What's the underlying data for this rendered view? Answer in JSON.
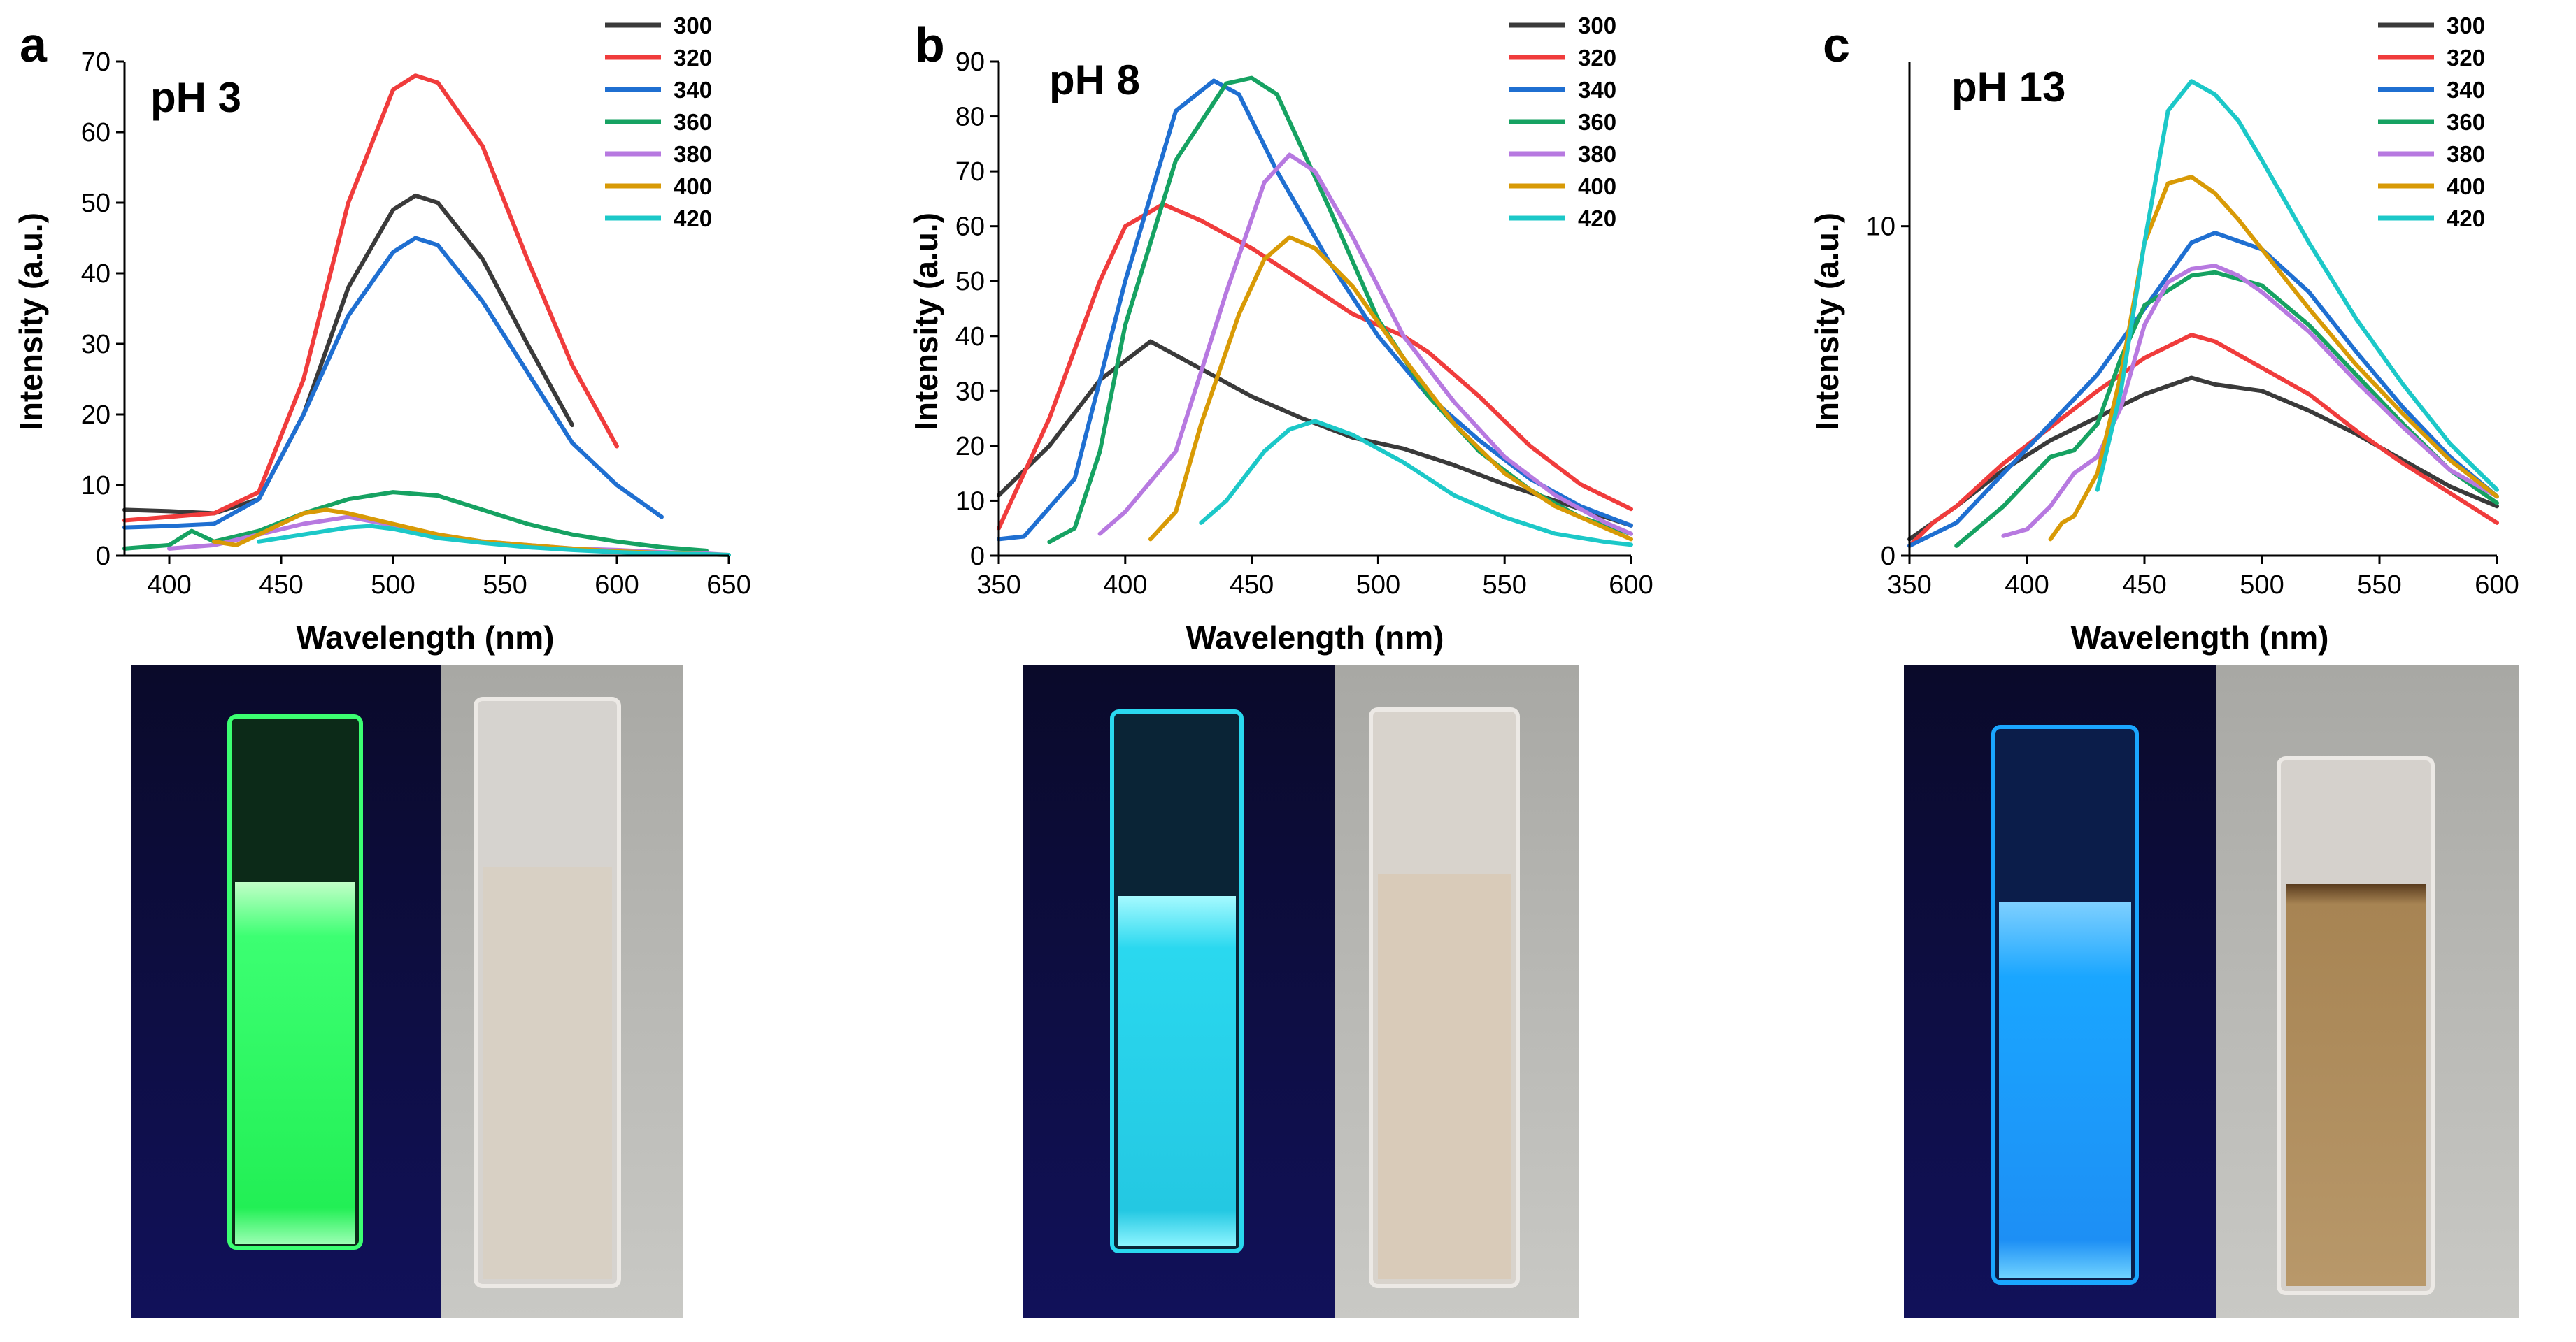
{
  "chart_data": [
    {
      "type": "line",
      "panel_letter": "a",
      "annotation": "pH 3",
      "xlabel": "Wavelength (nm)",
      "ylabel": "Intensity (a.u.)",
      "xlim": [
        380,
        650
      ],
      "ylim": [
        0,
        70
      ],
      "xticks": [
        400,
        450,
        500,
        550,
        600,
        650
      ],
      "yticks": [
        0,
        10,
        20,
        30,
        40,
        50,
        60,
        70
      ],
      "legend_position": "top-right",
      "series": [
        {
          "name": "300",
          "color": "#3a3a3a",
          "x": [
            380,
            400,
            420,
            440,
            460,
            480,
            500,
            510,
            520,
            540,
            560,
            580
          ],
          "y": [
            6.5,
            6.3,
            6.0,
            8,
            20,
            38,
            49,
            51,
            50,
            42,
            30,
            18.5
          ]
        },
        {
          "name": "320",
          "color": "#f03c3c",
          "x": [
            380,
            400,
            420,
            440,
            460,
            480,
            500,
            510,
            520,
            540,
            560,
            580,
            600
          ],
          "y": [
            5,
            5.5,
            6,
            9,
            25,
            50,
            66,
            68,
            67,
            58,
            42,
            27,
            15.5
          ]
        },
        {
          "name": "340",
          "color": "#1f6fd1",
          "x": [
            380,
            400,
            420,
            440,
            460,
            480,
            500,
            510,
            520,
            540,
            560,
            580,
            600,
            620
          ],
          "y": [
            4,
            4.2,
            4.5,
            8,
            20,
            34,
            43,
            45,
            44,
            36,
            26,
            16,
            10,
            5.5
          ]
        },
        {
          "name": "360",
          "color": "#16a262",
          "x": [
            380,
            400,
            410,
            420,
            440,
            460,
            480,
            500,
            520,
            540,
            560,
            580,
            600,
            620,
            640
          ],
          "y": [
            1,
            1.5,
            3.5,
            2,
            3.5,
            6,
            8,
            9,
            8.5,
            6.5,
            4.5,
            3,
            2,
            1.2,
            0.7
          ]
        },
        {
          "name": "380",
          "color": "#b779e0",
          "x": [
            400,
            420,
            440,
            460,
            480,
            500,
            520,
            540,
            560,
            580,
            600,
            620,
            640,
            650
          ],
          "y": [
            1,
            1.5,
            3,
            4.5,
            5.5,
            4.3,
            3,
            2,
            1.5,
            1,
            0.8,
            0.5,
            0.3,
            0.1
          ]
        },
        {
          "name": "400",
          "color": "#d89a06",
          "x": [
            420,
            430,
            440,
            460,
            470,
            480,
            500,
            520,
            540,
            560,
            580,
            600,
            620,
            640,
            650
          ],
          "y": [
            2,
            1.5,
            3,
            6,
            6.5,
            6,
            4.5,
            3,
            2,
            1.5,
            1,
            0.6,
            0.4,
            0.2,
            0.1
          ]
        },
        {
          "name": "420",
          "color": "#1cc8c8",
          "x": [
            440,
            460,
            480,
            490,
            500,
            520,
            540,
            560,
            580,
            600,
            620,
            640,
            650
          ],
          "y": [
            2,
            3,
            4,
            4.2,
            3.8,
            2.5,
            1.8,
            1.2,
            0.8,
            0.5,
            0.3,
            0.2,
            0.1
          ]
        }
      ]
    },
    {
      "type": "line",
      "panel_letter": "b",
      "annotation": "pH 8",
      "xlabel": "Wavelength (nm)",
      "ylabel": "Intensity (a.u.)",
      "xlim": [
        350,
        600
      ],
      "ylim": [
        0,
        90
      ],
      "xticks": [
        350,
        400,
        450,
        500,
        550,
        600
      ],
      "yticks": [
        0,
        10,
        20,
        30,
        40,
        50,
        60,
        70,
        80,
        90
      ],
      "legend_position": "top-right",
      "series": [
        {
          "name": "300",
          "color": "#3a3a3a",
          "x": [
            350,
            370,
            390,
            410,
            430,
            450,
            470,
            490,
            510,
            530,
            550,
            570,
            590,
            600
          ],
          "y": [
            11,
            20,
            32,
            39,
            34,
            29,
            25,
            21.5,
            19.5,
            16.5,
            13,
            10,
            7,
            5.5
          ]
        },
        {
          "name": "320",
          "color": "#f03c3c",
          "x": [
            350,
            370,
            390,
            400,
            415,
            430,
            450,
            470,
            490,
            510,
            520,
            540,
            560,
            580,
            600
          ],
          "y": [
            5,
            25,
            50,
            60,
            64,
            61,
            56,
            50,
            44,
            40,
            37,
            29,
            20,
            13,
            8.5
          ]
        },
        {
          "name": "340",
          "color": "#1f6fd1",
          "x": [
            350,
            360,
            380,
            400,
            420,
            435,
            445,
            460,
            480,
            500,
            520,
            540,
            560,
            580,
            600
          ],
          "y": [
            3,
            3.5,
            14,
            50,
            81,
            86.5,
            84,
            70,
            54,
            40,
            29,
            21,
            14,
            9,
            5.5
          ]
        },
        {
          "name": "360",
          "color": "#16a262",
          "x": [
            370,
            380,
            390,
            400,
            420,
            440,
            450,
            460,
            480,
            500,
            520,
            540,
            560,
            580,
            600
          ],
          "y": [
            2.5,
            5,
            19,
            42,
            72,
            86,
            87,
            84,
            64,
            43,
            29,
            19,
            12,
            7,
            4
          ]
        },
        {
          "name": "380",
          "color": "#b779e0",
          "x": [
            390,
            400,
            420,
            440,
            455,
            465,
            475,
            490,
            510,
            530,
            550,
            570,
            590,
            600
          ],
          "y": [
            4,
            8,
            19,
            48,
            68,
            73,
            70,
            58,
            40,
            28,
            18,
            11,
            6,
            4
          ]
        },
        {
          "name": "400",
          "color": "#d89a06",
          "x": [
            410,
            420,
            430,
            445,
            455,
            465,
            475,
            490,
            510,
            530,
            550,
            570,
            590,
            600
          ],
          "y": [
            3,
            8,
            24,
            44,
            54,
            58,
            56,
            49,
            36,
            24,
            15,
            9,
            5,
            3
          ]
        },
        {
          "name": "420",
          "color": "#1cc8c8",
          "x": [
            430,
            440,
            455,
            465,
            475,
            490,
            510,
            530,
            550,
            570,
            590,
            600
          ],
          "y": [
            6,
            10,
            19,
            23,
            24.5,
            22,
            17,
            11,
            7,
            4,
            2.5,
            2
          ]
        }
      ]
    },
    {
      "type": "line",
      "panel_letter": "c",
      "annotation": "pH 13",
      "xlabel": "Wavelength (nm)",
      "ylabel": "Intensity (a.u.)",
      "xlim": [
        350,
        600
      ],
      "ylim": [
        0,
        15
      ],
      "xticks": [
        350,
        400,
        450,
        500,
        550,
        600
      ],
      "yticks": [
        0,
        10
      ],
      "legend_position": "top-right",
      "series": [
        {
          "name": "300",
          "color": "#3a3a3a",
          "x": [
            350,
            370,
            390,
            410,
            430,
            450,
            470,
            480,
            490,
            500,
            520,
            540,
            560,
            580,
            600
          ],
          "y": [
            0.5,
            1.5,
            2.6,
            3.5,
            4.2,
            4.9,
            5.4,
            5.2,
            5.1,
            5.0,
            4.4,
            3.7,
            2.9,
            2.1,
            1.5
          ]
        },
        {
          "name": "320",
          "color": "#f03c3c",
          "x": [
            350,
            360,
            370,
            390,
            410,
            430,
            450,
            470,
            480,
            500,
            520,
            540,
            560,
            580,
            600
          ],
          "y": [
            0.3,
            1.0,
            1.5,
            2.8,
            3.9,
            5.0,
            6.0,
            6.7,
            6.5,
            5.7,
            4.9,
            3.8,
            2.8,
            1.9,
            1.0
          ]
        },
        {
          "name": "340",
          "color": "#1f6fd1",
          "x": [
            350,
            370,
            390,
            410,
            430,
            450,
            470,
            480,
            500,
            520,
            540,
            560,
            580,
            600
          ],
          "y": [
            0.3,
            1.0,
            2.5,
            4.0,
            5.5,
            7.5,
            9.5,
            9.8,
            9.3,
            8.0,
            6.2,
            4.5,
            3.0,
            1.8
          ]
        },
        {
          "name": "360",
          "color": "#16a262",
          "x": [
            370,
            390,
            410,
            420,
            430,
            440,
            450,
            470,
            480,
            500,
            520,
            540,
            560,
            580,
            600
          ],
          "y": [
            0.3,
            1.5,
            3.0,
            3.2,
            4.0,
            6.0,
            7.6,
            8.5,
            8.6,
            8.2,
            7.0,
            5.5,
            4.0,
            2.6,
            1.6
          ]
        },
        {
          "name": "380",
          "color": "#b779e0",
          "x": [
            390,
            400,
            410,
            420,
            430,
            440,
            450,
            460,
            470,
            480,
            490,
            500,
            520,
            540,
            560,
            580,
            600
          ],
          "y": [
            0.6,
            0.8,
            1.5,
            2.5,
            3.0,
            4.5,
            7.0,
            8.3,
            8.7,
            8.8,
            8.5,
            8.0,
            6.8,
            5.3,
            3.9,
            2.6,
            1.8
          ]
        },
        {
          "name": "400",
          "color": "#d89a06",
          "x": [
            410,
            415,
            420,
            430,
            440,
            450,
            460,
            470,
            480,
            490,
            500,
            520,
            540,
            560,
            580,
            600
          ],
          "y": [
            0.5,
            1.0,
            1.2,
            2.5,
            5.5,
            9.5,
            11.3,
            11.5,
            11.0,
            10.2,
            9.3,
            7.5,
            5.8,
            4.3,
            2.9,
            1.8
          ]
        },
        {
          "name": "420",
          "color": "#1cc8c8",
          "x": [
            430,
            440,
            450,
            460,
            470,
            480,
            490,
            500,
            520,
            540,
            560,
            580,
            600
          ],
          "y": [
            2.0,
            5.0,
            9.5,
            13.5,
            14.4,
            14.0,
            13.2,
            12.0,
            9.5,
            7.2,
            5.2,
            3.4,
            2.0
          ]
        }
      ]
    }
  ]
}
